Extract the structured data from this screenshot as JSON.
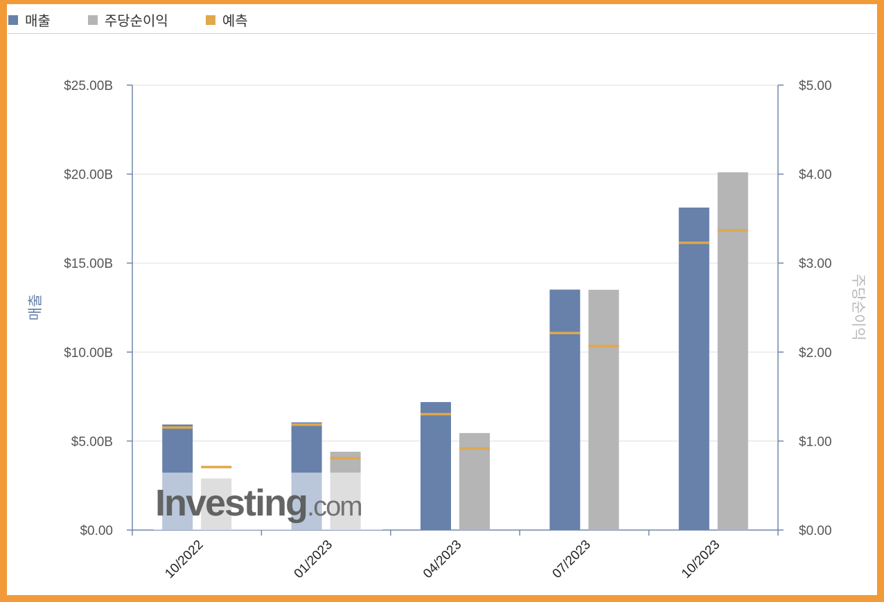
{
  "legend": [
    {
      "label": "매출",
      "color": "#6781aa"
    },
    {
      "label": "주당순이익",
      "color": "#b5b5b5"
    },
    {
      "label": "예측",
      "color": "#e0a84a"
    }
  ],
  "chart_data": {
    "type": "bar",
    "categories": [
      "10/2022",
      "01/2023",
      "04/2023",
      "07/2023",
      "10/2023"
    ],
    "left_axis": {
      "label": "매출",
      "min": 0,
      "max": 25,
      "ticks": [
        "$0.00",
        "$5.00B",
        "$10.00B",
        "$15.00B",
        "$20.00B",
        "$25.00B"
      ]
    },
    "right_axis": {
      "label": "주당순이익",
      "min": 0,
      "max": 5,
      "ticks": [
        "$0.00",
        "$1.00",
        "$2.00",
        "$3.00",
        "$4.00",
        "$5.00"
      ]
    },
    "series": [
      {
        "name": "매출",
        "axis": "left",
        "color": "#6781aa",
        "values": [
          5.93,
          6.05,
          7.19,
          13.51,
          18.12
        ]
      },
      {
        "name": "매출 예측",
        "axis": "left",
        "color": "#e0a84a",
        "values": [
          5.77,
          5.93,
          6.52,
          11.08,
          16.15
        ]
      },
      {
        "name": "주당순이익",
        "axis": "right",
        "color": "#b5b5b5",
        "values": [
          0.58,
          0.88,
          1.09,
          2.7,
          4.02
        ]
      },
      {
        "name": "주당순이익 예측",
        "axis": "right",
        "color": "#e0a84a",
        "values": [
          0.71,
          0.81,
          0.92,
          2.07,
          3.37
        ]
      }
    ],
    "grid": true
  },
  "watermark": "Investing.com"
}
